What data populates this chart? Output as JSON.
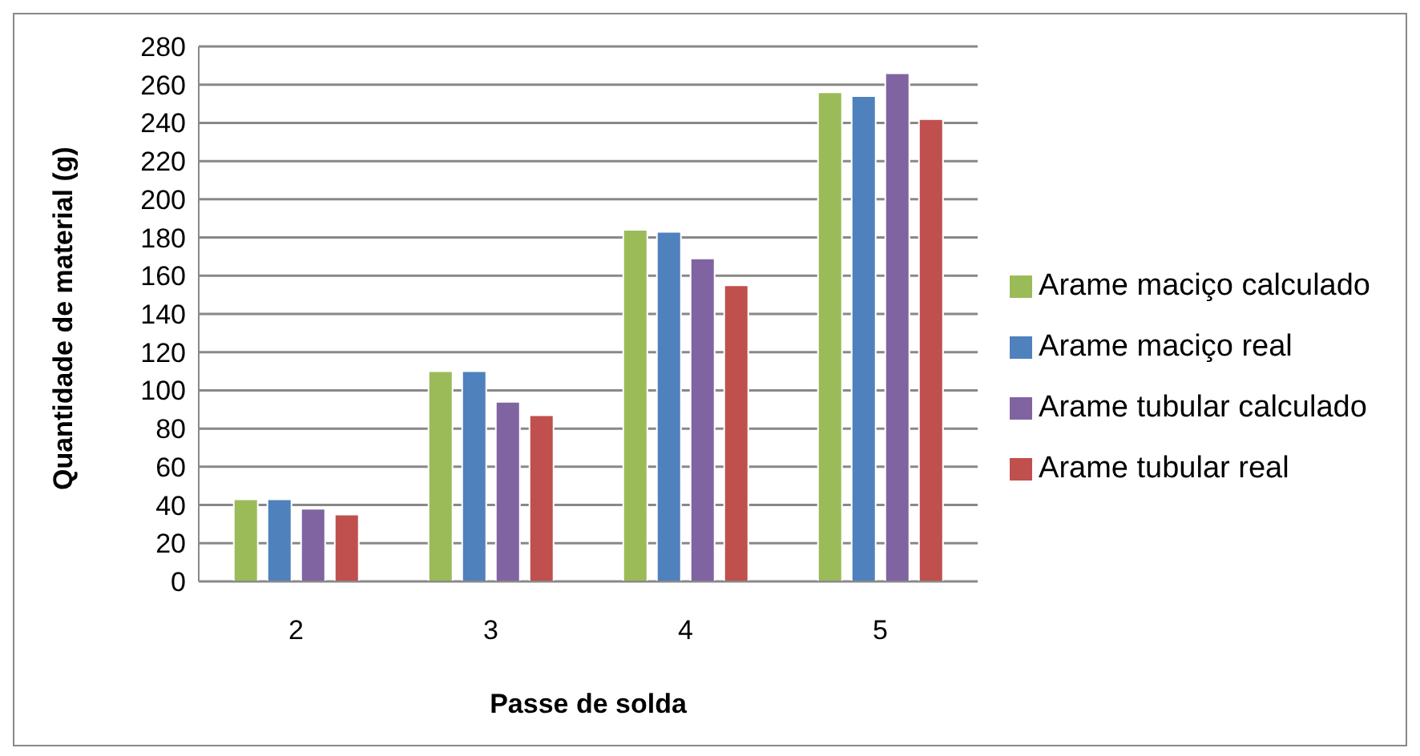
{
  "chart_data": {
    "type": "bar",
    "xlabel": "Passe de solda",
    "ylabel": "Quantidade de material (g)",
    "categories": [
      "2",
      "3",
      "4",
      "5"
    ],
    "series": [
      {
        "name": "Arame maciço calculado",
        "color": "#9bbb59",
        "values": [
          43,
          110,
          184,
          256
        ]
      },
      {
        "name": "Arame maciço real",
        "color": "#4f81bd",
        "values": [
          43,
          110,
          183,
          254
        ]
      },
      {
        "name": "Arame tubular calculado",
        "color": "#8064a2",
        "values": [
          38,
          94,
          169,
          266
        ]
      },
      {
        "name": "Arame tubular real",
        "color": "#c0504d",
        "values": [
          35,
          87,
          155,
          242
        ]
      }
    ],
    "ylim": [
      0,
      280
    ],
    "yticks": [
      0,
      20,
      40,
      60,
      80,
      100,
      120,
      140,
      160,
      180,
      200,
      220,
      240,
      260,
      280
    ],
    "grid": "y",
    "legend": "right"
  }
}
